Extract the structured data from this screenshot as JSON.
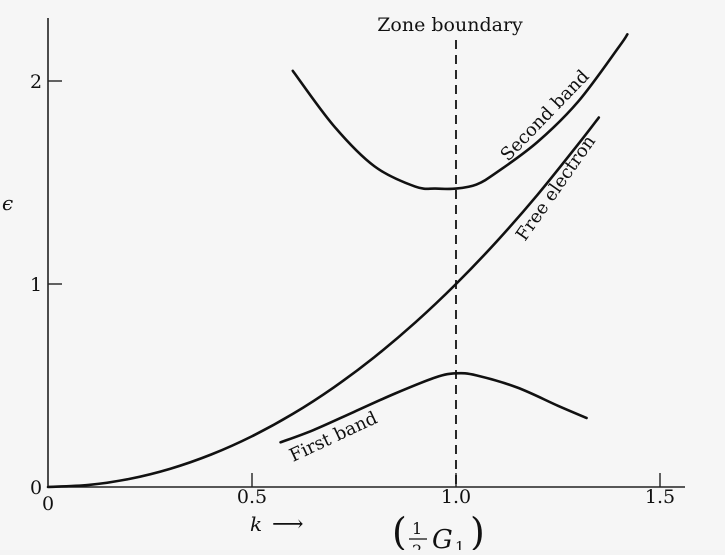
{
  "chart_data": {
    "type": "line",
    "title": "",
    "xlabel": "k",
    "xlabel_arrow": "⟶",
    "ylabel": "ϵ",
    "zone_label_open": "(",
    "zone_label_num": "1",
    "zone_label_den": "2",
    "zone_label_var": "G",
    "zone_label_sub": "1",
    "zone_label_close": ")",
    "xlim": [
      0,
      1.55
    ],
    "ylim": [
      0,
      2.3
    ],
    "x_ticks": [
      {
        "value": 0.5,
        "label": "0.5"
      },
      {
        "value": 1.0,
        "label": "1.0"
      },
      {
        "value": 1.5,
        "label": "1.5"
      }
    ],
    "x_origin_label": "0",
    "y_ticks": [
      {
        "value": 1,
        "label": "1"
      },
      {
        "value": 2,
        "label": "2"
      }
    ],
    "y_origin_label": "0",
    "zone_boundary": {
      "x": 1.0,
      "label": "Zone boundary"
    },
    "series": [
      {
        "name": "Free electron",
        "x": [
          0,
          0.1,
          0.2,
          0.3,
          0.4,
          0.5,
          0.6,
          0.7,
          0.8,
          0.9,
          1.0,
          1.1,
          1.2,
          1.3,
          1.35
        ],
        "y": [
          0,
          0.01,
          0.04,
          0.09,
          0.16,
          0.25,
          0.36,
          0.49,
          0.64,
          0.81,
          1.0,
          1.21,
          1.44,
          1.69,
          1.82
        ]
      },
      {
        "name": "First band",
        "x": [
          0.57,
          0.65,
          0.75,
          0.85,
          0.95,
          1.0,
          1.05,
          1.15,
          1.25,
          1.32
        ],
        "y": [
          0.22,
          0.28,
          0.37,
          0.46,
          0.54,
          0.56,
          0.55,
          0.49,
          0.4,
          0.34
        ]
      },
      {
        "name": "Second band",
        "x": [
          0.6,
          0.7,
          0.8,
          0.9,
          0.95,
          1.0,
          1.05,
          1.1,
          1.2,
          1.3,
          1.4,
          1.42
        ],
        "y": [
          2.05,
          1.78,
          1.58,
          1.48,
          1.47,
          1.47,
          1.49,
          1.55,
          1.7,
          1.9,
          2.17,
          2.23
        ]
      }
    ],
    "grid": false,
    "legend": "none"
  }
}
